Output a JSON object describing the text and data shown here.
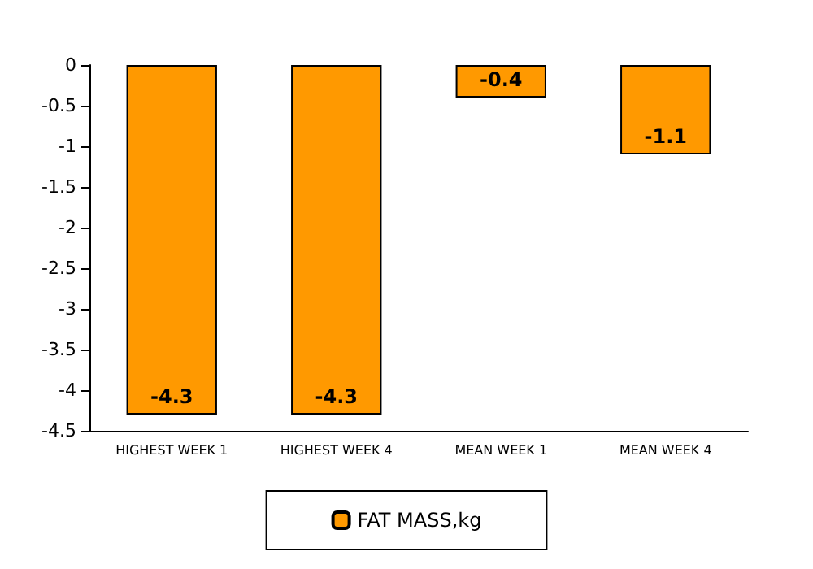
{
  "chart_data": {
    "type": "bar",
    "categories": [
      "HIGHEST WEEK 1",
      "HIGHEST WEEK 4",
      "MEAN WEEK 1",
      "MEAN WEEK 4"
    ],
    "series": [
      {
        "name": "FAT MASS,kg",
        "color": "#ff9900",
        "values": [
          -4.3,
          -4.3,
          -0.4,
          -1.1
        ]
      }
    ],
    "ylim": [
      -4.5,
      0
    ],
    "yticks": [
      -4.5,
      -4,
      -3.5,
      -3,
      -2.5,
      -2,
      -1.5,
      -1,
      -0.5,
      0
    ],
    "data_labels": true,
    "grid": false,
    "legend": "bottom"
  }
}
